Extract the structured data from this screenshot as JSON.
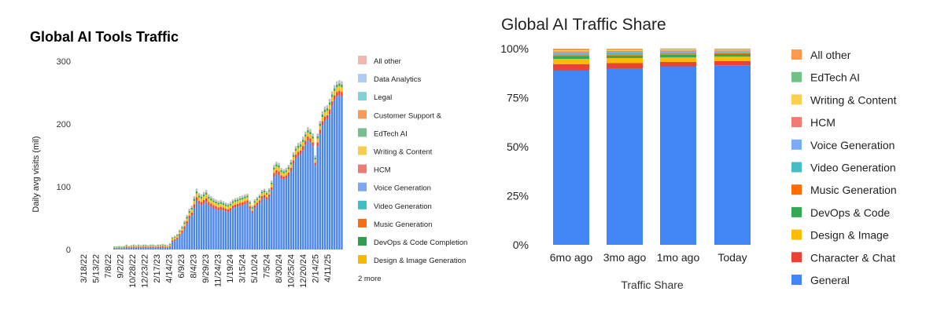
{
  "chart_data": [
    {
      "type": "bar",
      "stacked": true,
      "title": "Global AI Tools Traffic",
      "ylabel": "Daily avg visits (mil)",
      "xlabel": "",
      "ylim": [
        0,
        300
      ],
      "yticks": [
        "0",
        "100",
        "200",
        "300"
      ],
      "xtick_labels": [
        "3/18/22",
        "5/13/22",
        "7/8/22",
        "9/2/22",
        "10/28/22",
        "12/23/22",
        "2/17/23",
        "4/14/23",
        "6/9/23",
        "8/4/23",
        "9/29/23",
        "11/24/23",
        "1/19/24",
        "3/15/24",
        "5/10/24",
        "7/5/24",
        "8/30/24",
        "10/25/24",
        "12/20/24",
        "2/14/25",
        "4/11/25"
      ],
      "legend": [
        {
          "name": "All other",
          "color": "#f4b6b0"
        },
        {
          "name": "Data Analytics",
          "color": "#aecbf5"
        },
        {
          "name": "Legal",
          "color": "#7fd3d6"
        },
        {
          "name": "Customer Support &",
          "color": "#f79a5a"
        },
        {
          "name": "EdTech AI",
          "color": "#73c28e"
        },
        {
          "name": "Writing & Content",
          "color": "#f7cd4c"
        },
        {
          "name": "HCM",
          "color": "#ec7b74"
        },
        {
          "name": "Voice Generation",
          "color": "#7aa7ef"
        },
        {
          "name": "Video Generation",
          "color": "#3fbec7"
        },
        {
          "name": "Music Generation",
          "color": "#f46e1a"
        },
        {
          "name": "DevOps & Code Completion",
          "color": "#2e9e4f"
        },
        {
          "name": "Design & Image Generation",
          "color": "#f6b800"
        }
      ],
      "legend_more": "2 more",
      "segment_colors": {
        "general": "#4a86e8",
        "character": "#ea4335",
        "design": "#fbbc04",
        "devops": "#34a853",
        "other": "#bdbdbd"
      },
      "totals": [
        0,
        0,
        0,
        0,
        0,
        0,
        0,
        0,
        0,
        0,
        0,
        5,
        5,
        6,
        5,
        6,
        8,
        6,
        7,
        8,
        7,
        8,
        7,
        8,
        8,
        7,
        8,
        8,
        7,
        8,
        8,
        9,
        8,
        7,
        10,
        20,
        22,
        25,
        32,
        38,
        46,
        55,
        65,
        70,
        85,
        97,
        90,
        88,
        92,
        95,
        88,
        85,
        82,
        80,
        78,
        79,
        77,
        75,
        74,
        76,
        80,
        82,
        83,
        85,
        86,
        88,
        89,
        78,
        70,
        80,
        84,
        88,
        95,
        97,
        93,
        98,
        110,
        135,
        140,
        138,
        130,
        128,
        130,
        135,
        143,
        155,
        165,
        170,
        172,
        180,
        188,
        195,
        192,
        185,
        150,
        185,
        205,
        220,
        228,
        230,
        240,
        252,
        262,
        268,
        270,
        268
      ],
      "general_share": [
        0.8,
        0.8,
        0.8,
        0.8,
        0.8,
        0.8,
        0.8,
        0.8,
        0.8,
        0.8,
        0.8,
        0.4,
        0.4,
        0.4,
        0.4,
        0.4,
        0.4,
        0.4,
        0.4,
        0.4,
        0.4,
        0.4,
        0.4,
        0.4,
        0.4,
        0.4,
        0.4,
        0.4,
        0.4,
        0.4,
        0.4,
        0.4,
        0.4,
        0.4,
        0.4,
        0.62,
        0.64,
        0.66,
        0.68,
        0.7,
        0.72,
        0.74,
        0.76,
        0.77,
        0.78,
        0.8,
        0.8,
        0.8,
        0.8,
        0.8,
        0.8,
        0.8,
        0.8,
        0.8,
        0.8,
        0.8,
        0.81,
        0.81,
        0.81,
        0.81,
        0.82,
        0.82,
        0.82,
        0.82,
        0.82,
        0.82,
        0.83,
        0.83,
        0.83,
        0.83,
        0.84,
        0.84,
        0.85,
        0.85,
        0.85,
        0.85,
        0.86,
        0.86,
        0.86,
        0.86,
        0.87,
        0.87,
        0.87,
        0.87,
        0.87,
        0.88,
        0.88,
        0.88,
        0.88,
        0.88,
        0.89,
        0.89,
        0.89,
        0.89,
        0.89,
        0.89,
        0.9,
        0.9,
        0.9,
        0.9,
        0.9,
        0.91,
        0.91,
        0.91,
        0.91,
        0.91
      ]
    },
    {
      "type": "bar",
      "stacked": true,
      "percent": true,
      "title": "Global AI Traffic Share",
      "xlabel": "Traffic Share",
      "ylabel": "",
      "ylim": [
        0,
        100
      ],
      "yticks": [
        "0%",
        "25%",
        "50%",
        "75%",
        "100%"
      ],
      "categories": [
        "6mo ago",
        "3mo ago",
        "1mo ago",
        "Today"
      ],
      "series": [
        {
          "name": "General",
          "color": "#4285f4",
          "values": [
            89,
            90,
            91,
            91.5
          ]
        },
        {
          "name": "Character & Chat",
          "color": "#ea4335",
          "values": [
            3,
            2.6,
            2.2,
            2.2
          ]
        },
        {
          "name": "Design & Image",
          "color": "#fbbc04",
          "values": [
            2.8,
            2.6,
            2.3,
            2.2
          ]
        },
        {
          "name": "DevOps & Code",
          "color": "#34a853",
          "values": [
            1.2,
            1.3,
            1.4,
            1.3
          ]
        },
        {
          "name": "Music Generation",
          "color": "#ff6d01",
          "values": [
            0.7,
            0.6,
            0.6,
            0.5
          ]
        },
        {
          "name": "Video Generation",
          "color": "#46bdc6",
          "values": [
            0.8,
            0.7,
            0.6,
            0.6
          ]
        },
        {
          "name": "Voice Generation",
          "color": "#7baaf7",
          "values": [
            0.6,
            0.5,
            0.5,
            0.4
          ]
        },
        {
          "name": "HCM",
          "color": "#f07b72",
          "values": [
            0.5,
            0.5,
            0.4,
            0.4
          ]
        },
        {
          "name": "Writing & Content",
          "color": "#fcd04f",
          "values": [
            0.6,
            0.5,
            0.5,
            0.4
          ]
        },
        {
          "name": "EdTech AI",
          "color": "#71c287",
          "values": [
            0.5,
            0.4,
            0.4,
            0.3
          ]
        },
        {
          "name": "All other",
          "color": "#ff994d",
          "values": [
            0.3,
            0.3,
            0.2,
            0.2
          ]
        }
      ],
      "legend_order": [
        "All other",
        "EdTech AI",
        "Writing & Content",
        "HCM",
        "Voice Generation",
        "Video Generation",
        "Music Generation",
        "DevOps & Code",
        "Design & Image",
        "Character & Chat",
        "General"
      ]
    }
  ]
}
